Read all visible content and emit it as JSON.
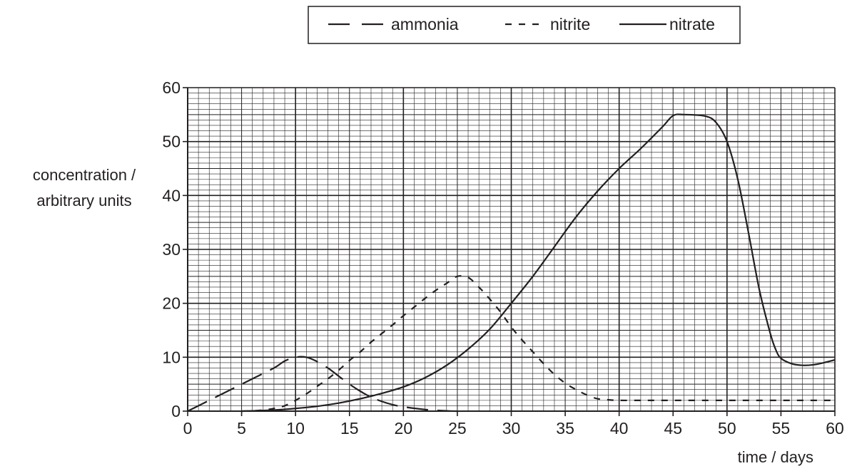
{
  "chart_data": {
    "type": "line",
    "ylabel_line1": "concentration /",
    "ylabel_line2": "arbitrary units",
    "xlabel": "time / days",
    "xlim": [
      0,
      60
    ],
    "ylim": [
      0,
      60
    ],
    "xticks": [
      0,
      5,
      10,
      15,
      20,
      25,
      30,
      35,
      40,
      45,
      50,
      55,
      60
    ],
    "yticks": [
      0,
      10,
      20,
      30,
      40,
      50,
      60
    ],
    "grid": true,
    "legend_position": "top",
    "series": [
      {
        "name": "ammonia",
        "style": "long-dash",
        "x": [
          0,
          2,
          4,
          6,
          8,
          9,
          10,
          11,
          12,
          13,
          14,
          15,
          16,
          17,
          18,
          19,
          20,
          22,
          24,
          25
        ],
        "y": [
          0,
          2,
          4,
          6,
          8,
          9.3,
          10,
          10,
          9.2,
          8,
          6.5,
          5,
          3.7,
          2.6,
          1.8,
          1.2,
          0.8,
          0.3,
          0.05,
          0
        ]
      },
      {
        "name": "nitrite",
        "style": "short-dash",
        "x": [
          5,
          6,
          7,
          8,
          9,
          10,
          11,
          12,
          13,
          14,
          15,
          16,
          17,
          18,
          19,
          20,
          21,
          22,
          23,
          24,
          25,
          26,
          27,
          28,
          29,
          30,
          31,
          32,
          33,
          34,
          35,
          36,
          37,
          38,
          39,
          40,
          42,
          45,
          50,
          55,
          60
        ],
        "y": [
          0,
          0.05,
          0.2,
          0.5,
          1,
          2,
          3.2,
          4.6,
          6,
          7.6,
          9.4,
          11,
          12.8,
          14.4,
          16,
          17.7,
          19.3,
          20.9,
          22.4,
          23.7,
          25,
          24.8,
          23,
          20.8,
          18.4,
          15.6,
          13.2,
          11,
          8.8,
          6.8,
          5.2,
          4,
          3,
          2.3,
          2.1,
          2,
          2,
          2,
          2,
          2,
          2
        ]
      },
      {
        "name": "nitrate",
        "style": "solid",
        "x": [
          5,
          8,
          10,
          12,
          14,
          16,
          18,
          20,
          22,
          24,
          26,
          28,
          30,
          32,
          34,
          36,
          38,
          40,
          42,
          44,
          45,
          46,
          48,
          49,
          50,
          51,
          52,
          53,
          54,
          54.5,
          55,
          56,
          57,
          58,
          59,
          60
        ],
        "y": [
          0,
          0.2,
          0.5,
          0.9,
          1.5,
          2.3,
          3.3,
          4.5,
          6.2,
          8.5,
          11.5,
          15.2,
          20,
          25,
          30.5,
          36,
          40.8,
          45,
          48.7,
          52.7,
          54.8,
          55,
          54.7,
          53.5,
          50,
          43,
          33,
          22.5,
          14.5,
          11.5,
          9.8,
          8.8,
          8.5,
          8.6,
          9,
          9.5
        ]
      }
    ]
  }
}
